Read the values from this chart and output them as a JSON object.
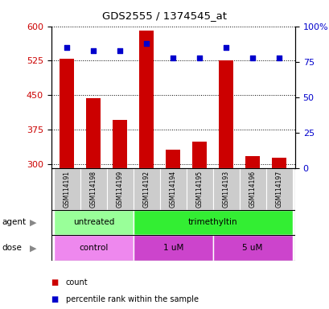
{
  "title": "GDS2555 / 1374545_at",
  "samples": [
    "GSM114191",
    "GSM114198",
    "GSM114199",
    "GSM114192",
    "GSM114194",
    "GSM114195",
    "GSM114193",
    "GSM114196",
    "GSM114197"
  ],
  "counts": [
    530,
    443,
    395,
    590,
    330,
    348,
    525,
    316,
    314
  ],
  "percentiles": [
    85,
    83,
    83,
    88,
    78,
    78,
    85,
    78,
    78
  ],
  "ylim_left": [
    290,
    600
  ],
  "ylim_right": [
    0,
    100
  ],
  "yticks_left": [
    300,
    375,
    450,
    525,
    600
  ],
  "yticks_right": [
    0,
    25,
    50,
    75,
    100
  ],
  "bar_color": "#cc0000",
  "marker_color": "#0000cc",
  "agent_groups": [
    {
      "label": "untreated",
      "start": 0,
      "end": 3,
      "color": "#99ff99"
    },
    {
      "label": "trimethyltin",
      "start": 3,
      "end": 9,
      "color": "#33ee33"
    }
  ],
  "dose_colors": [
    "#ee88ee",
    "#cc44cc",
    "#cc44cc"
  ],
  "dose_groups": [
    {
      "label": "control",
      "start": 0,
      "end": 3
    },
    {
      "label": "1 uM",
      "start": 3,
      "end": 6
    },
    {
      "label": "5 uM",
      "start": 6,
      "end": 9
    }
  ],
  "bg_color": "#ffffff",
  "sample_bg": "#cccccc",
  "bar_width": 0.55
}
